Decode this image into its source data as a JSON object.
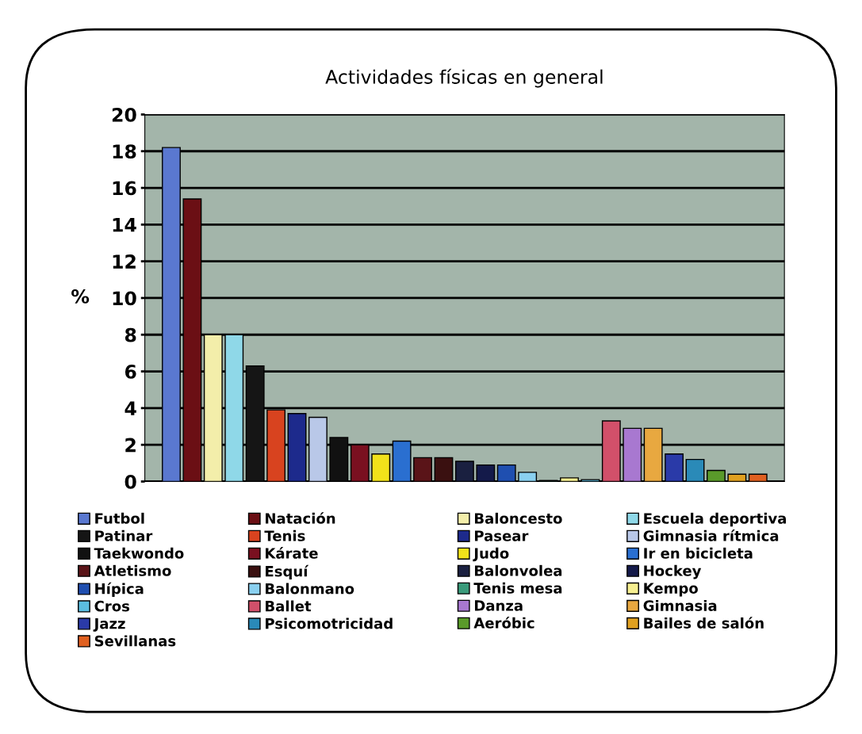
{
  "chart_data": {
    "type": "bar",
    "title": "Actividades físicas en general",
    "ylabel": "%",
    "categories": [
      null
    ],
    "series": [
      {
        "name": "Futbol",
        "color": "#5a78d0",
        "values": [
          18.2
        ]
      },
      {
        "name": "Natación",
        "color": "#6b0f14",
        "values": [
          15.4
        ]
      },
      {
        "name": "Baloncesto",
        "color": "#f3eeaa",
        "values": [
          8.0
        ]
      },
      {
        "name": "Escuela deportiva",
        "color": "#8fd8e8",
        "values": [
          8.0
        ]
      },
      {
        "name": "Patinar",
        "color": "#151515",
        "values": [
          6.3
        ]
      },
      {
        "name": "Tenis",
        "color": "#d8431f",
        "values": [
          3.9
        ]
      },
      {
        "name": "Pasear",
        "color": "#1d2a8c",
        "values": [
          3.7
        ]
      },
      {
        "name": "Gimnasia rítmica",
        "color": "#b9c8e8",
        "values": [
          3.5
        ]
      },
      {
        "name": "Taekwondo",
        "color": "#111111",
        "values": [
          2.4
        ]
      },
      {
        "name": "Kárate",
        "color": "#7a1020",
        "values": [
          2.0
        ]
      },
      {
        "name": "Judo",
        "color": "#f2e21a",
        "values": [
          1.5
        ]
      },
      {
        "name": "Ir en bicicleta",
        "color": "#2a6fd0",
        "values": [
          2.2
        ]
      },
      {
        "name": "Atletismo",
        "color": "#5a1418",
        "values": [
          1.3
        ]
      },
      {
        "name": "Esquí",
        "color": "#3a1010",
        "values": [
          1.3
        ]
      },
      {
        "name": "Balonvolea",
        "color": "#1a2040",
        "values": [
          1.1
        ]
      },
      {
        "name": "Hockey",
        "color": "#141a4a",
        "values": [
          0.9
        ]
      },
      {
        "name": "Hípica",
        "color": "#1f4fb0",
        "values": [
          0.9
        ]
      },
      {
        "name": "Balonmano",
        "color": "#8ad0f0",
        "values": [
          0.5
        ]
      },
      {
        "name": "Tenis mesa",
        "color": "#3a9a7a",
        "values": [
          0.05
        ]
      },
      {
        "name": "Kempo",
        "color": "#f5ee90",
        "values": [
          0.2
        ]
      },
      {
        "name": "Cros",
        "color": "#5bbde0",
        "values": [
          0.1
        ]
      },
      {
        "name": "Ballet",
        "color": "#d2506a",
        "values": [
          3.3
        ]
      },
      {
        "name": "Danza",
        "color": "#a878d0",
        "values": [
          2.9
        ]
      },
      {
        "name": "Gimnasia",
        "color": "#e8a840",
        "values": [
          2.9
        ]
      },
      {
        "name": "Jazz",
        "color": "#2a3aa8",
        "values": [
          1.5
        ]
      },
      {
        "name": "Psicomotricidad",
        "color": "#2a8ab8",
        "values": [
          1.2
        ]
      },
      {
        "name": "Aeróbic",
        "color": "#5a9a2a",
        "values": [
          0.6
        ]
      },
      {
        "name": "Bailes de salón",
        "color": "#e0a020",
        "values": [
          0.4
        ]
      },
      {
        "name": "Sevillanas",
        "color": "#e06020",
        "values": [
          0.4
        ]
      }
    ],
    "ylim": [
      0,
      20
    ],
    "yticks": [
      0,
      2,
      4,
      6,
      8,
      10,
      12,
      14,
      16,
      18,
      20
    ],
    "grid": "y",
    "legend": "bottom"
  }
}
